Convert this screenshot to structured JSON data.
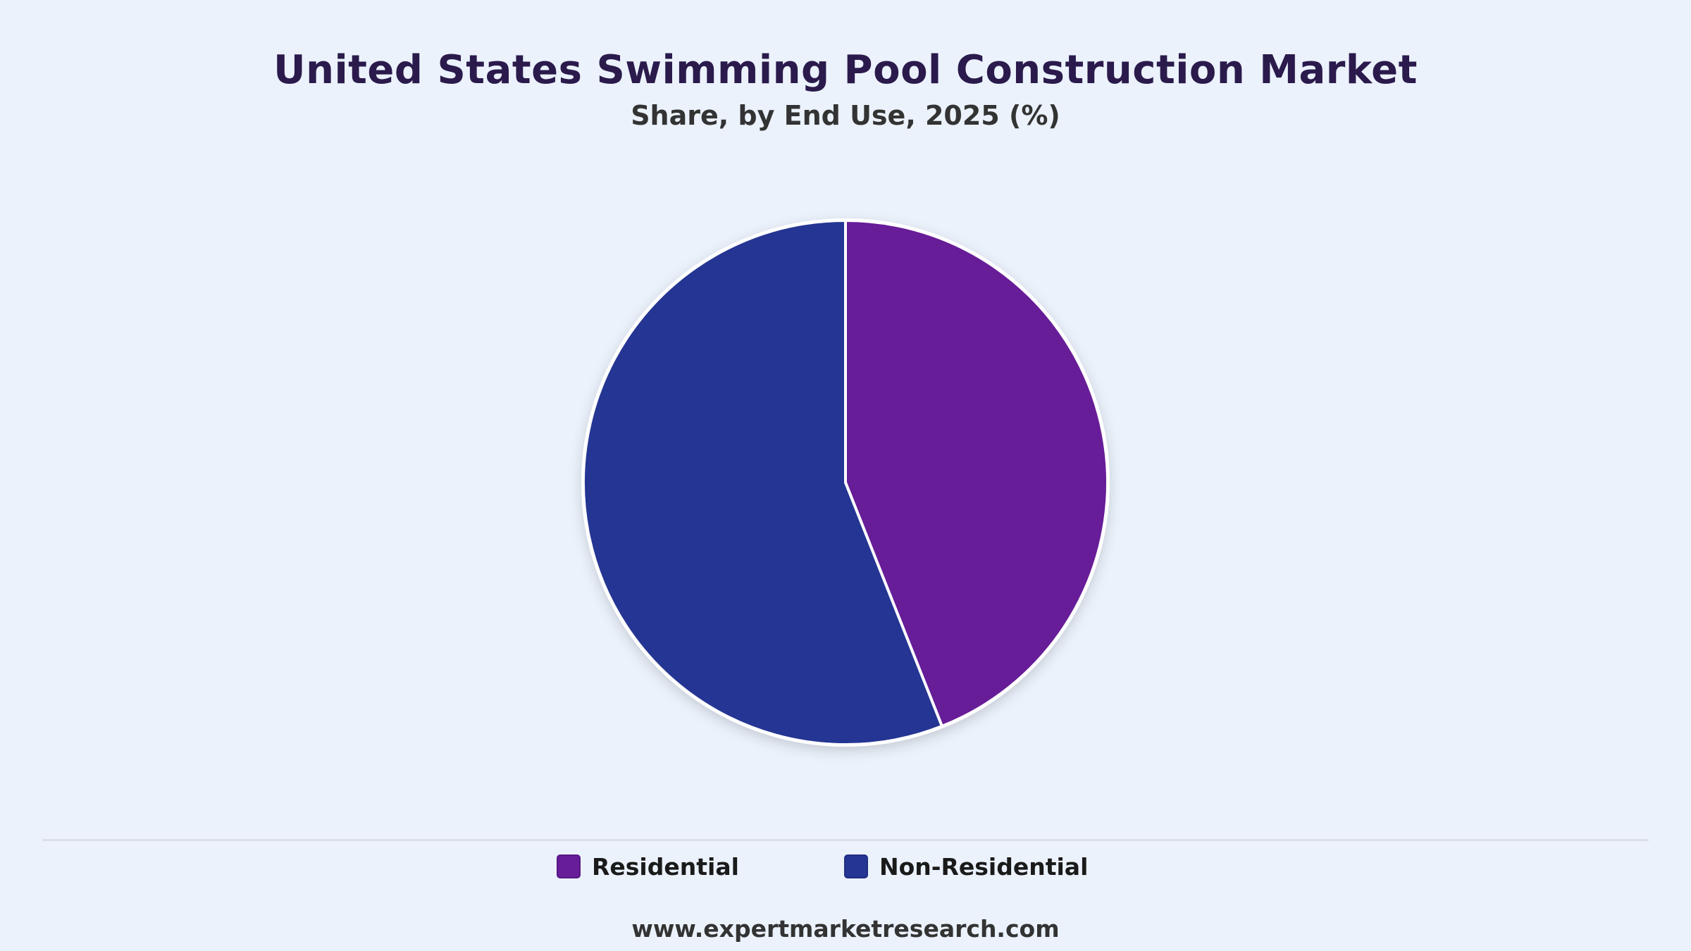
{
  "page": {
    "title": "United States Swimming Pool Construction Market",
    "subtitle": "Share, by End Use, 2025 (%)",
    "footer": "www.expertmarketresearch.com"
  },
  "chart_data": {
    "type": "pie",
    "title": "United States Swimming Pool Construction Market",
    "subtitle": "Share, by End Use, 2025 (%)",
    "start_angle": "12 o'clock",
    "direction": "clockwise",
    "legend_position": "bottom",
    "slices": [
      {
        "label": "Residential",
        "value": 44,
        "color": "#671C98"
      },
      {
        "label": "Non-Residential",
        "value": 56,
        "color": "#253593"
      }
    ]
  }
}
